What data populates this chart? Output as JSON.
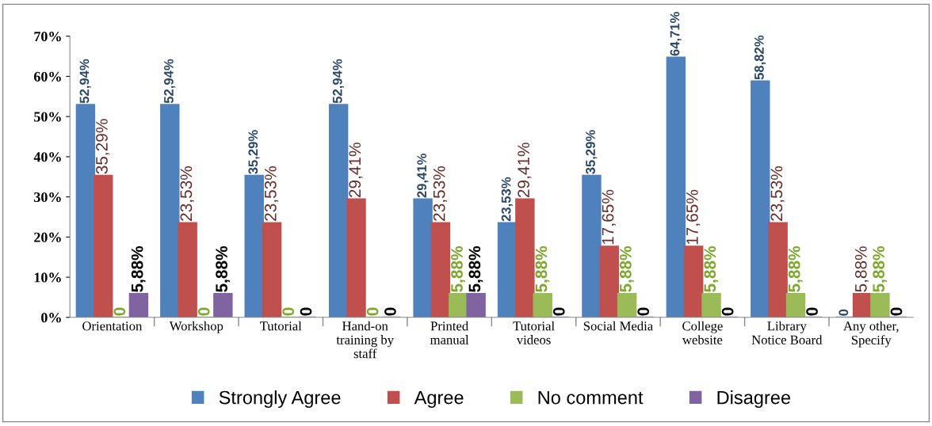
{
  "chart_data": {
    "type": "bar",
    "categories": [
      "Orientation",
      "Workshop",
      "Tutorial",
      "Hand-on\ntraining by\nstaff",
      "Printed\nmanual",
      "Tutorial\nvideos",
      "Social Media",
      "College\nwebsite",
      "Library\nNotice Board",
      "Any other,\nSpecify"
    ],
    "series": [
      {
        "name": "Strongly Agree",
        "color": "#4f81bd",
        "values": [
          52.94,
          52.94,
          35.29,
          52.94,
          29.41,
          23.53,
          35.29,
          64.71,
          58.82,
          0
        ],
        "value_labels": [
          "52,94%",
          "52,94%",
          "35,29%",
          "52,94%",
          "29,41%",
          "23,53%",
          "35,29%",
          "64,71%",
          "58,82%",
          "0"
        ]
      },
      {
        "name": "Agree",
        "color": "#c0504d",
        "values": [
          35.29,
          23.53,
          23.53,
          29.41,
          23.53,
          29.41,
          17.65,
          17.65,
          23.53,
          5.88
        ],
        "value_labels": [
          "35,29%",
          "23,53%",
          "23,53%",
          "29,41%",
          "23,53%",
          "29,41%",
          "17,65%",
          "17,65%",
          "23,53%",
          "5,88%"
        ]
      },
      {
        "name": "No comment",
        "color": "#9bbb59",
        "values": [
          0,
          0,
          0,
          0,
          5.88,
          5.88,
          5.88,
          5.88,
          5.88,
          5.88
        ],
        "value_labels": [
          "0",
          "0",
          "0",
          "0",
          "5,88%",
          "5,88%",
          "5,88%",
          "5,88%",
          "5,88%",
          "5,88%"
        ]
      },
      {
        "name": "Disagree",
        "color": "#8064a2",
        "values": [
          5.88,
          5.88,
          0,
          0,
          5.88,
          0,
          0,
          0,
          0,
          0
        ],
        "value_labels": [
          "5,88%",
          "5,88%",
          "0",
          "0",
          "5,88%",
          "0",
          "0",
          "0",
          "0",
          "0"
        ]
      }
    ],
    "ylim": [
      0,
      70
    ],
    "yticks": [
      {
        "value": 0,
        "label": "0%"
      },
      {
        "value": 10,
        "label": "10%"
      },
      {
        "value": 20,
        "label": "20%"
      },
      {
        "value": 30,
        "label": "30%"
      },
      {
        "value": 40,
        "label": "40%"
      },
      {
        "value": 50,
        "label": "50%"
      },
      {
        "value": 60,
        "label": "60%"
      },
      {
        "value": 70,
        "label": "70%"
      }
    ],
    "grid": false,
    "legend": "bottom"
  }
}
